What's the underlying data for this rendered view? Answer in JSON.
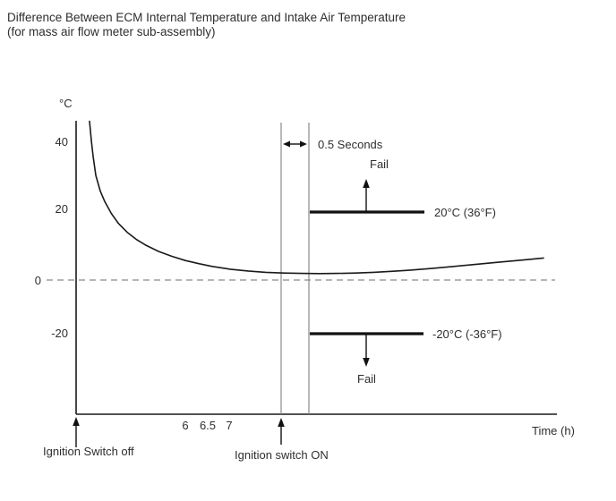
{
  "title": {
    "line1": "Difference Between ECM Internal Temperature and Intake Air Temperature",
    "line2": "(for mass air flow meter sub-assembly)"
  },
  "chart_data": {
    "type": "line",
    "title": "Difference Between ECM Internal Temperature and Intake Air Temperature (for mass air flow meter sub-assembly)",
    "xlabel": "Time (h)",
    "ylabel": "°C",
    "x_tick_labels": [
      "6",
      "6.5",
      "7"
    ],
    "y_tick_labels": [
      "40",
      "20",
      "0",
      "-20"
    ],
    "grid": false,
    "legend": false,
    "zero_line": {
      "value": 0,
      "style": "dashed"
    },
    "series": [
      {
        "name": "ECM internal temperature minus intake air temperature",
        "points_time_h_degC": [
          [
            3.86,
            45.5
          ],
          [
            3.9,
            40.0
          ],
          [
            3.94,
            35.5
          ],
          [
            4.0,
            30.0
          ],
          [
            4.1,
            25.5
          ],
          [
            4.2,
            22.5
          ],
          [
            4.35,
            19.0
          ],
          [
            4.5,
            16.3
          ],
          [
            4.7,
            13.7
          ],
          [
            4.9,
            11.7
          ],
          [
            5.1,
            10.1
          ],
          [
            5.4,
            8.2
          ],
          [
            5.7,
            6.8
          ],
          [
            6.0,
            5.6
          ],
          [
            6.3,
            4.7
          ],
          [
            6.6,
            3.9
          ],
          [
            7.0,
            3.1
          ],
          [
            7.4,
            2.6
          ],
          [
            7.8,
            2.2
          ],
          [
            8.2,
            2.0
          ],
          [
            8.6,
            1.9
          ],
          [
            9.0,
            1.85
          ],
          [
            9.4,
            1.9
          ],
          [
            9.8,
            2.0
          ],
          [
            10.2,
            2.2
          ],
          [
            10.6,
            2.5
          ],
          [
            11.0,
            2.8
          ],
          [
            11.5,
            3.3
          ],
          [
            12.0,
            3.9
          ],
          [
            12.5,
            4.5
          ],
          [
            13.0,
            5.1
          ],
          [
            13.5,
            5.7
          ],
          [
            14.0,
            6.3
          ]
        ]
      }
    ],
    "thresholds": [
      {
        "value_c": 20,
        "label": "20°C (36°F)",
        "fail_label": "Fail",
        "fail_direction": "above"
      },
      {
        "value_c": -20,
        "label": "-20°C (-36°F)",
        "fail_label": "Fail",
        "fail_direction": "below"
      }
    ],
    "annotations": {
      "interval_label": "0.5 Seconds",
      "interval_seconds": 0.5,
      "ignition_off_label": "Ignition Switch off",
      "ignition_on_label": "Ignition switch ON"
    },
    "colors": {
      "curve": "#1a1a1a",
      "axis": "#1a1a1a",
      "guide": "#8a8a8a",
      "text": "#2e2e2e"
    }
  }
}
